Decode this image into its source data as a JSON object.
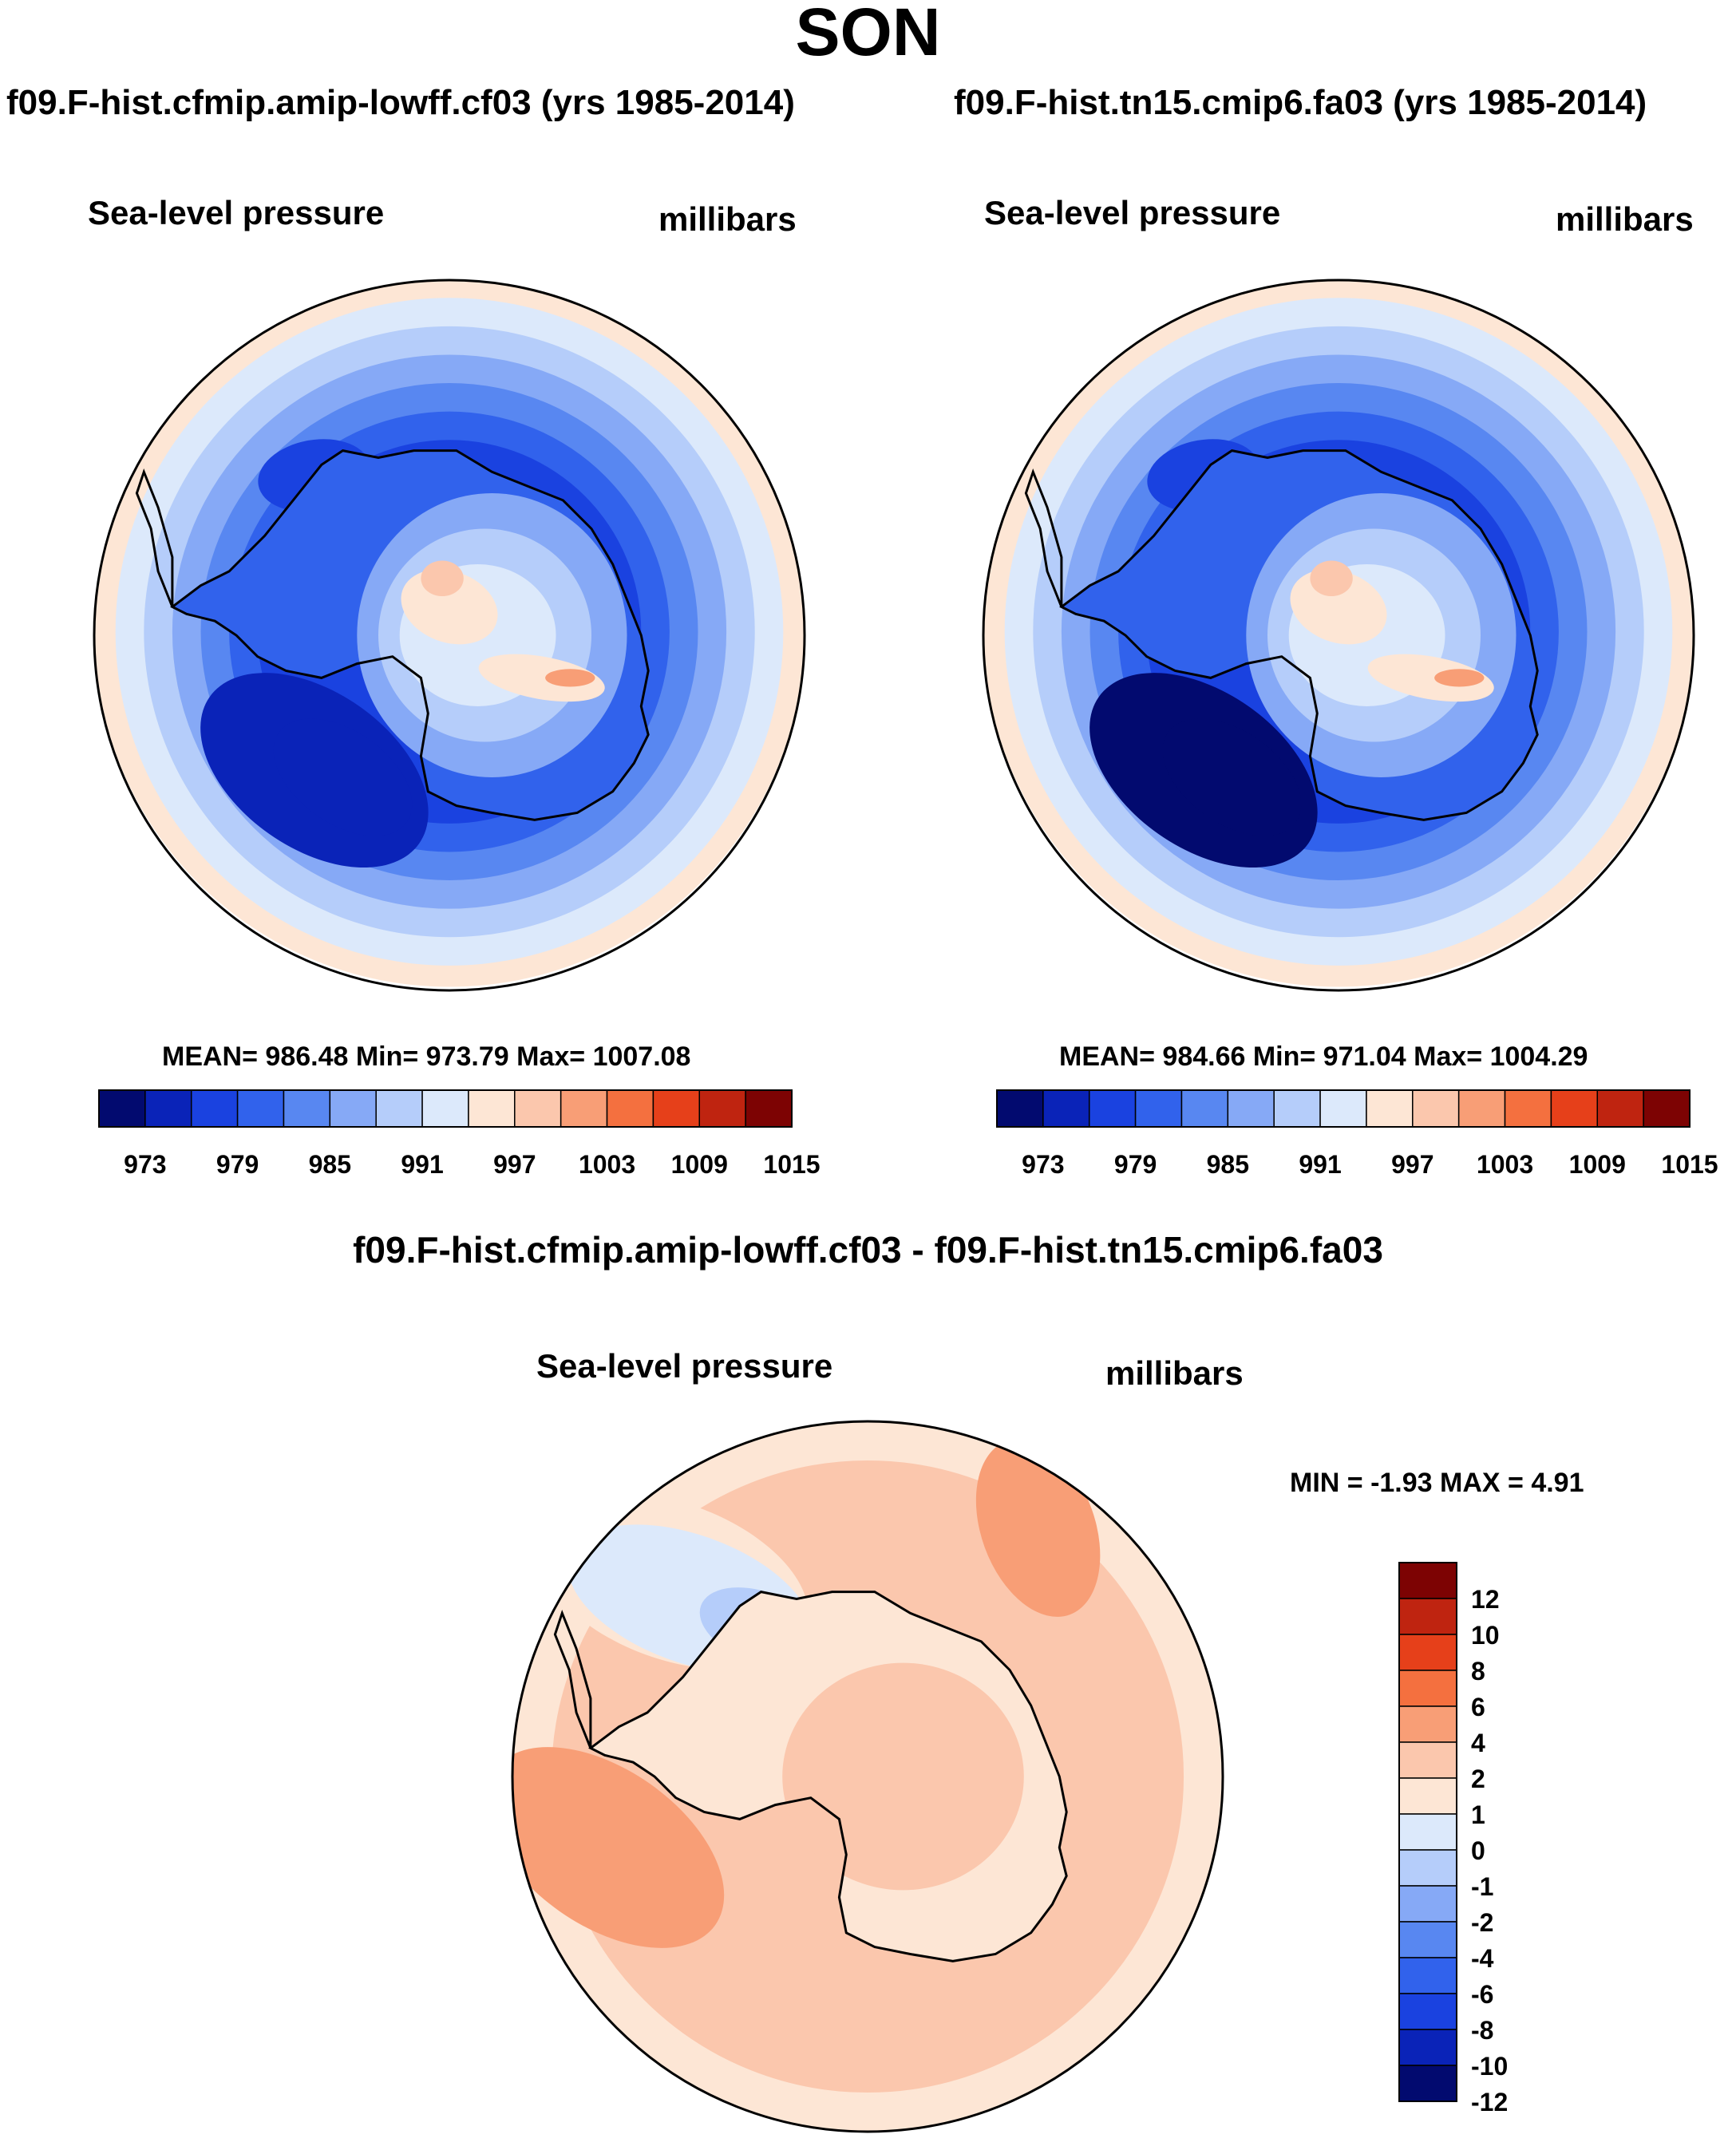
{
  "season": "SON",
  "panels": [
    {
      "title": "f09.F-hist.cfmip.amip-lowff.cf03 (yrs 1985-2014)",
      "variable": "Sea-level pressure",
      "units": "millibars",
      "stats": {
        "mean": "986.48",
        "min": "973.79",
        "max": "1007.08",
        "text": "MEAN= 986.48  Min= 973.79  Max= 1007.08"
      }
    },
    {
      "title": "f09.F-hist.tn15.cmip6.fa03 (yrs 1985-2014)",
      "variable": "Sea-level pressure",
      "units": "millibars",
      "stats": {
        "mean": "984.66",
        "min": "971.04",
        "max": "1004.29",
        "text": "MEAN= 984.66  Min= 971.04  Max= 1004.29"
      }
    }
  ],
  "diff": {
    "title": "f09.F-hist.cfmip.amip-lowff.cf03 - f09.F-hist.tn15.cmip6.fa03",
    "variable": "Sea-level pressure",
    "units": "millibars",
    "minmax_text": "MIN =  -1.93 MAX =   4.91",
    "min": -1.93,
    "max": 4.91
  },
  "chart_data": [
    {
      "type": "heatmap",
      "subtype": "polar-stereographic filled contour",
      "title": "f09.F-hist.cfmip.amip-lowff.cf03 (yrs 1985-2014)",
      "variable": "Sea-level pressure",
      "units": "millibars",
      "mean": 986.48,
      "min": 973.79,
      "max": 1007.08,
      "levels": [
        973,
        976,
        979,
        982,
        985,
        988,
        991,
        994,
        997,
        1000,
        1003,
        1006,
        1009,
        1012,
        1015
      ],
      "colorbar_tick_labels": [
        "973",
        "979",
        "985",
        "991",
        "997",
        "1003",
        "1009",
        "1015"
      ],
      "colorbar_orientation": "horizontal"
    },
    {
      "type": "heatmap",
      "subtype": "polar-stereographic filled contour",
      "title": "f09.F-hist.tn15.cmip6.fa03 (yrs 1985-2014)",
      "variable": "Sea-level pressure",
      "units": "millibars",
      "mean": 984.66,
      "min": 971.04,
      "max": 1004.29,
      "levels": [
        973,
        976,
        979,
        982,
        985,
        988,
        991,
        994,
        997,
        1000,
        1003,
        1006,
        1009,
        1012,
        1015
      ],
      "colorbar_tick_labels": [
        "973",
        "979",
        "985",
        "991",
        "997",
        "1003",
        "1009",
        "1015"
      ],
      "colorbar_orientation": "horizontal"
    },
    {
      "type": "heatmap",
      "subtype": "polar-stereographic filled contour (difference)",
      "title": "f09.F-hist.cfmip.amip-lowff.cf03 - f09.F-hist.tn15.cmip6.fa03",
      "variable": "Sea-level pressure",
      "units": "millibars",
      "min": -1.93,
      "max": 4.91,
      "levels": [
        -12,
        -10,
        -8,
        -6,
        -4,
        -2,
        -1,
        0,
        1,
        2,
        4,
        6,
        8,
        10,
        12
      ],
      "colorbar_tick_labels": [
        "12",
        "10",
        "8",
        "6",
        "4",
        "2",
        "1",
        "0",
        "-1",
        "-2",
        "-4",
        "-6",
        "-8",
        "-10",
        "-12"
      ],
      "colorbar_orientation": "vertical"
    }
  ],
  "palette": {
    "slp": [
      "#020a6f",
      "#0a23b8",
      "#1a42e0",
      "#3162ec",
      "#5887f1",
      "#86a9f6",
      "#b5cdfa",
      "#dce9fb",
      "#fde6d5",
      "#fbc7ad",
      "#f89e76",
      "#f4703f",
      "#e6401a",
      "#bf2410",
      "#7d0303"
    ],
    "diff": [
      "#7d0303",
      "#bf2410",
      "#e6401a",
      "#f4703f",
      "#f89e76",
      "#fbc7ad",
      "#fde6d5",
      "#dce9fb",
      "#b5cdfa",
      "#86a9f6",
      "#5887f1",
      "#3162ec",
      "#1a42e0",
      "#0a23b8",
      "#020a6f"
    ],
    "coast": "#000000"
  }
}
